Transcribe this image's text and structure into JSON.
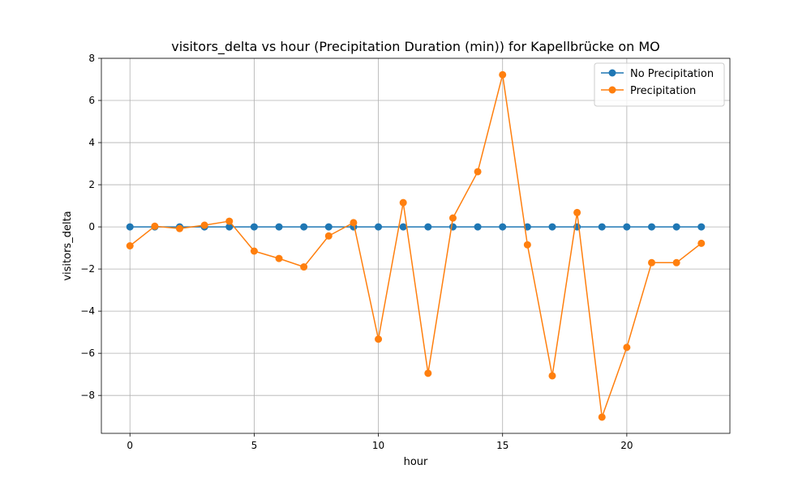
{
  "chart_data": {
    "type": "line",
    "title": "visitors_delta vs hour (Precipitation Duration (min)) for Kapellbrücke on MO",
    "xlabel": "hour",
    "ylabel": "visitors_delta",
    "xlim": [
      -1.15,
      24.15
    ],
    "ylim": [
      -9.8,
      8.0
    ],
    "xticks": [
      0,
      5,
      10,
      15,
      20
    ],
    "yticks": [
      -8,
      -6,
      -4,
      -2,
      0,
      2,
      4,
      6,
      8
    ],
    "grid": true,
    "legend_position": "top-right",
    "x": [
      0,
      1,
      2,
      3,
      4,
      5,
      6,
      7,
      8,
      9,
      10,
      11,
      12,
      13,
      14,
      15,
      16,
      17,
      18,
      19,
      20,
      21,
      22,
      23
    ],
    "series": [
      {
        "name": "No Precipitation",
        "color": "#1f77b4",
        "values": [
          0,
          0,
          0,
          0,
          0,
          0,
          0,
          0,
          0,
          0,
          0,
          0,
          0,
          0,
          0,
          0,
          0,
          0,
          0,
          0,
          0,
          0,
          0,
          0
        ]
      },
      {
        "name": "Precipitation",
        "color": "#ff7f0e",
        "values": [
          -0.9,
          0.03,
          -0.08,
          0.08,
          0.27,
          -1.15,
          -1.5,
          -1.9,
          -0.43,
          0.2,
          -5.33,
          1.15,
          -6.95,
          0.42,
          2.62,
          7.22,
          -0.85,
          -7.07,
          0.68,
          -9.03,
          -5.72,
          -1.7,
          -1.7,
          -0.78
        ]
      }
    ]
  }
}
